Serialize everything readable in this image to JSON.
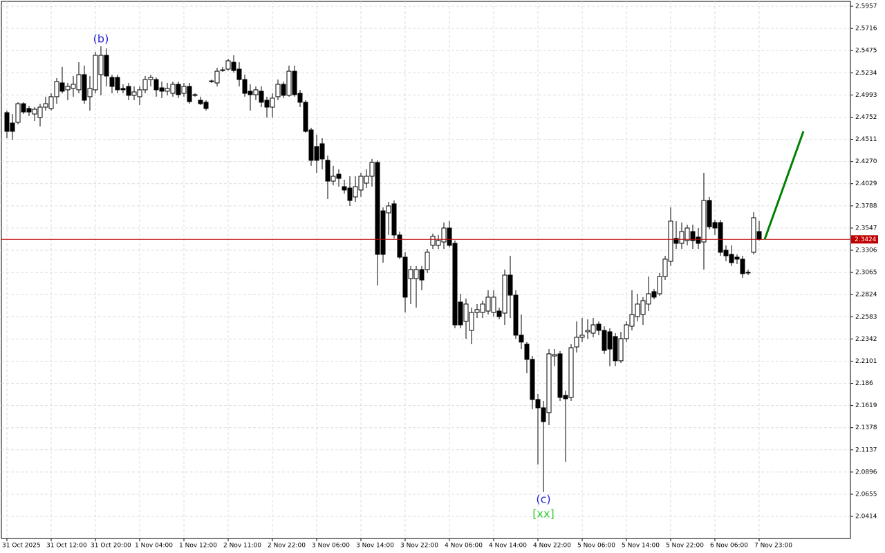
{
  "chart_data": {
    "type": "candlestick",
    "xlim": [
      -1,
      152.5
    ],
    "xticks": [
      {
        "value": 0,
        "label": "31 Oct 2025"
      },
      {
        "value": 8,
        "label": "31 Oct 12:00"
      },
      {
        "value": 16,
        "label": "31 Oct 20:00"
      },
      {
        "value": 24,
        "label": "1 Nov 04:00"
      },
      {
        "value": 32,
        "label": "1 Nov 12:00"
      },
      {
        "value": 40,
        "label": "2 Nov 11:00"
      },
      {
        "value": 48,
        "label": "2 Nov 22:00"
      },
      {
        "value": 56,
        "label": "3 Nov 06:00"
      },
      {
        "value": 64,
        "label": "3 Nov 14:00"
      },
      {
        "value": 72,
        "label": "3 Nov 22:00"
      },
      {
        "value": 80,
        "label": "4 Nov 06:00"
      },
      {
        "value": 88,
        "label": "4 Nov 14:00"
      },
      {
        "value": 96,
        "label": "4 Nov 22:00"
      },
      {
        "value": 104,
        "label": "5 Nov 06:00"
      },
      {
        "value": 112,
        "label": "5 Nov 14:00"
      },
      {
        "value": 120,
        "label": "5 Nov 22:00"
      },
      {
        "value": 128,
        "label": "6 Nov 06:00"
      },
      {
        "value": 136,
        "label": "7 Nov 23:00"
      }
    ],
    "ylim": [
      2.0174,
      2.601
    ],
    "yticks": [
      2.5957,
      2.5716,
      2.5475,
      2.5234,
      2.4993,
      2.4752,
      2.4511,
      {
        "value": 2.427,
        "label": "2.4270"
      },
      2.4029,
      2.3788,
      2.3547,
      2.3306,
      2.3065,
      2.2824,
      2.2583,
      2.2342,
      2.2101,
      2.186,
      2.1619,
      2.1378,
      2.1137,
      2.0896,
      2.0655,
      2.0414
    ],
    "grid": true,
    "up_color": "#ffffff",
    "down_color": "#000000",
    "open": [
      2.4801,
      2.4688,
      2.4696,
      2.4898,
      2.4846,
      2.4786,
      2.4748,
      2.4861,
      2.4846,
      2.4974,
      2.5124,
      2.5049,
      2.5064,
      2.5049,
      2.5214,
      2.4974,
      2.5049,
      2.5214,
      2.5424,
      2.5184,
      2.5184,
      2.5064,
      2.5086,
      2.4989,
      2.4974,
      2.5049,
      2.5161,
      2.5161,
      2.5071,
      2.5034,
      2.5011,
      2.5109,
      2.5011,
      2.5086,
      2.4996,
      2.4936,
      2.4914,
      2.5139,
      2.5124,
      2.5259,
      2.5274,
      2.5349,
      2.5274,
      2.5161,
      2.5034,
      2.4996,
      2.5034,
      2.4936,
      2.4861,
      2.4974,
      2.5109,
      2.4989,
      2.5251,
      2.5011,
      2.4914,
      2.4613,
      2.4433,
      2.4463,
      2.4283,
      2.4057,
      2.4132,
      2.3997,
      2.3982,
      2.3885,
      2.396,
      2.4035,
      2.411,
      2.426,
      2.3734,
      2.3712,
      2.381,
      2.3472,
      2.3231,
      2.2998,
      2.2998,
      2.3096,
      2.3096,
      2.3359,
      2.3359,
      2.3396,
      2.3547,
      2.3381,
      2.2743,
      2.2533,
      2.2435,
      2.263,
      2.263,
      2.2645,
      2.263,
      2.2645,
      2.2623,
      2.3036,
      2.2818,
      2.2383,
      2.2285,
      2.212,
      2.1684,
      2.1594,
      2.1542,
      2.2157,
      2.218,
      2.1729,
      2.1707,
      2.2255,
      2.236,
      2.242,
      2.2405,
      2.2503,
      2.2435,
      2.242,
      2.2368,
      2.2105,
      2.2345,
      2.248,
      2.2585,
      2.2608,
      2.2721,
      2.2856,
      2.2833,
      2.3021,
      2.3186,
      2.3434,
      2.3381,
      2.3412,
      2.3509,
      2.3449,
      2.3396,
      2.3847,
      2.3607,
      2.3607,
      2.3306,
      2.3261,
      2.3231,
      2.3209,
      2.3066,
      2.3284,
      2.3509
    ],
    "high": [
      2.4823,
      2.4786,
      2.4914,
      2.4914,
      2.4876,
      2.4861,
      2.4898,
      2.4974,
      2.5011,
      2.5176,
      2.5297,
      2.5124,
      2.5199,
      2.5349,
      2.5312,
      2.5199,
      2.5462,
      2.5522,
      2.5499,
      2.5214,
      2.5214,
      2.5109,
      2.5124,
      2.5086,
      2.5086,
      2.5199,
      2.5214,
      2.5184,
      2.5139,
      2.5124,
      2.5139,
      2.5139,
      2.5124,
      2.5124,
      2.5011,
      2.4974,
      2.4936,
      2.5161,
      2.5289,
      2.5297,
      2.5387,
      2.5424,
      2.5349,
      2.5214,
      2.5109,
      2.5086,
      2.5086,
      2.4974,
      2.5011,
      2.5161,
      2.5139,
      2.5312,
      2.5312,
      2.5049,
      2.4936,
      2.4636,
      2.4561,
      2.4523,
      2.4335,
      2.4223,
      2.4185,
      2.4072,
      2.411,
      2.411,
      2.4147,
      2.4185,
      2.4298,
      2.4283,
      2.3772,
      2.3832,
      2.3847,
      2.3509,
      2.3284,
      2.3134,
      2.3134,
      2.3134,
      2.3321,
      2.3487,
      2.3472,
      2.3607,
      2.3622,
      2.3412,
      2.2833,
      2.2781,
      2.2683,
      2.2721,
      2.2758,
      2.2871,
      2.2871,
      2.2683,
      2.3096,
      2.3246,
      2.2871,
      2.2608,
      2.2308,
      2.2157,
      2.1744,
      2.1669,
      2.2232,
      2.2232,
      2.221,
      2.1782,
      2.2285,
      2.2533,
      2.257,
      2.2555,
      2.257,
      2.2533,
      2.248,
      2.2458,
      2.2405,
      2.242,
      2.2533,
      2.2871,
      2.2833,
      2.2796,
      2.3021,
      2.2886,
      2.3059,
      2.3246,
      2.3772,
      2.3622,
      2.3607,
      2.3584,
      2.3584,
      2.3547,
      2.4147,
      2.3885,
      2.3637,
      2.3637,
      2.3359,
      2.3359,
      2.3261,
      2.3246,
      2.3096,
      2.3719,
      2.3622
    ],
    "low": [
      2.4523,
      2.4508,
      2.4673,
      2.4786,
      2.4763,
      2.4711,
      2.4651,
      2.4823,
      2.4823,
      2.4898,
      2.5011,
      2.4936,
      2.4974,
      2.5011,
      2.4898,
      2.4823,
      2.5011,
      2.4989,
      2.5086,
      2.5011,
      2.5011,
      2.5011,
      2.4936,
      2.4936,
      2.4883,
      2.5011,
      2.5086,
      2.4974,
      2.4959,
      2.4989,
      2.4974,
      2.4959,
      2.4974,
      2.4898,
      2.4974,
      2.4883,
      2.4823,
      2.5124,
      2.5086,
      2.5244,
      2.5259,
      2.5236,
      2.5086,
      2.4974,
      2.4823,
      2.4936,
      2.4861,
      2.4748,
      2.4748,
      2.4936,
      2.4959,
      2.4974,
      2.4974,
      2.4861,
      2.4583,
      2.4223,
      2.4147,
      2.4185,
      2.3862,
      2.4012,
      2.3997,
      2.3922,
      2.3787,
      2.3832,
      2.3885,
      2.3982,
      2.3997,
      2.2923,
      2.3171,
      2.3472,
      2.3434,
      2.3209,
      2.263,
      2.2721,
      2.2683,
      2.2871,
      2.3059,
      2.3321,
      2.3321,
      2.3321,
      2.3336,
      2.2458,
      2.2458,
      2.2345,
      2.2285,
      2.257,
      2.257,
      2.2608,
      2.2585,
      2.2555,
      2.2495,
      2.257,
      2.2345,
      2.2232,
      2.197,
      2.1579,
      2.0978,
      2.0678,
      2.1406,
      2.2045,
      2.1669,
      2.1008,
      2.1669,
      2.2195,
      2.2308,
      2.2345,
      2.236,
      2.2383,
      2.218,
      2.2045,
      2.2045,
      2.2082,
      2.2308,
      2.2435,
      2.2533,
      2.2495,
      2.2645,
      2.2773,
      2.2811,
      2.2983,
      2.3134,
      2.3321,
      2.3321,
      2.3359,
      2.3321,
      2.3321,
      2.3096,
      2.3532,
      2.3472,
      2.3246,
      2.3186,
      2.3134,
      2.3156,
      2.3006,
      2.3036,
      2.3261,
      2.3412
    ],
    "close": [
      2.4598,
      2.4598,
      2.4898,
      2.4808,
      2.4808,
      2.4838,
      2.4861,
      2.4898,
      2.4974,
      2.5139,
      2.5034,
      2.5086,
      2.5109,
      2.5214,
      2.4936,
      2.5064,
      2.5424,
      2.5424,
      2.5199,
      2.5086,
      2.5049,
      2.5049,
      2.4989,
      2.5026,
      2.5049,
      2.5161,
      2.5184,
      2.5049,
      2.5034,
      2.5064,
      2.5109,
      2.4996,
      2.5086,
      2.4921,
      2.4994,
      2.4898,
      2.4846,
      2.5146,
      2.5251,
      2.5266,
      2.5364,
      2.5259,
      2.5161,
      2.5011,
      2.4996,
      2.5049,
      2.4914,
      2.4861,
      2.4959,
      2.5109,
      2.4989,
      2.5251,
      2.4996,
      2.4914,
      2.4598,
      2.4283,
      2.4283,
      2.4298,
      2.4057,
      2.411,
      2.4087,
      2.396,
      2.3847,
      2.3997,
      2.411,
      2.411,
      2.426,
      2.3261,
      2.3261,
      2.3787,
      2.3472,
      2.3231,
      2.2796,
      2.3096,
      2.3096,
      2.2983,
      2.3284,
      2.3457,
      2.3412,
      2.3547,
      2.3359,
      2.2495,
      2.2495,
      2.2721,
      2.263,
      2.2661,
      2.2721,
      2.2796,
      2.2796,
      2.2585,
      2.3036,
      2.2818,
      2.2383,
      2.2308,
      2.212,
      2.1684,
      2.1594,
      2.1444,
      2.218,
      2.2172,
      2.1707,
      2.1692,
      2.2247,
      2.236,
      2.2383,
      2.2435,
      2.2495,
      2.2435,
      2.2217,
      2.2232,
      2.2105,
      2.2345,
      2.2495,
      2.2608,
      2.2721,
      2.2758,
      2.2833,
      2.2796,
      2.3021,
      2.3209,
      2.3622,
      2.3381,
      2.3509,
      2.3547,
      2.3412,
      2.3381,
      2.3847,
      2.3562,
      2.3547,
      2.3284,
      2.3246,
      2.3171,
      2.3209,
      2.3051,
      2.3059,
      2.3659,
      2.3424
    ],
    "price_line": {
      "value": 2.3424,
      "color": "#c00000"
    },
    "projection": {
      "x": [
        137,
        144
      ],
      "y": [
        2.3424,
        2.4598
      ],
      "color": "#008000"
    },
    "annotations": [
      {
        "text": "(b)",
        "candle": 17,
        "place": "above",
        "color": "#2323d6"
      },
      {
        "text": "(c)",
        "candle": 97,
        "place": "below",
        "color": "#2323d6"
      },
      {
        "text": "[xx]",
        "candle": 97,
        "place": "below2",
        "color": "#33cc33"
      }
    ]
  }
}
